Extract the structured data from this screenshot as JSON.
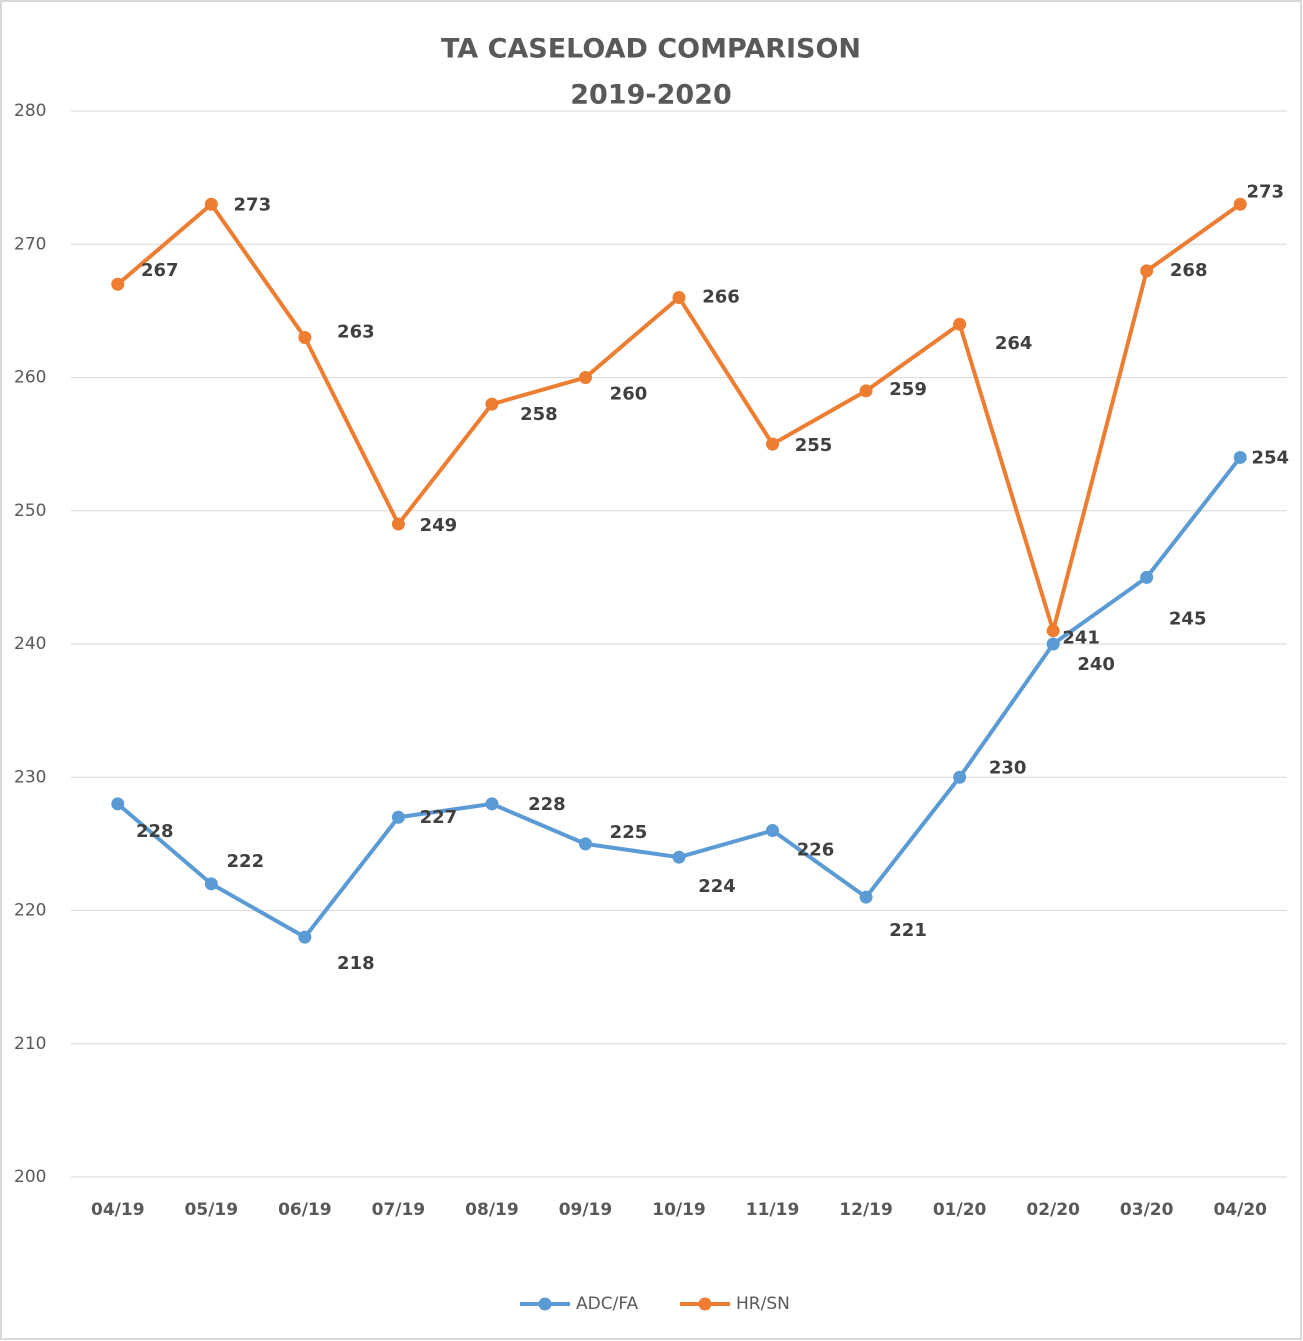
{
  "chart_data": {
    "type": "line",
    "title": "TA CASELOAD COMPARISON",
    "subtitle": "2019-2020",
    "categories": [
      "04/19",
      "05/19",
      "06/19",
      "07/19",
      "08/19",
      "09/19",
      "10/19",
      "11/19",
      "12/19",
      "01/20",
      "02/20",
      "03/20",
      "04/20"
    ],
    "series": [
      {
        "name": "ADC/FA",
        "color": "#5b9bd5",
        "values": [
          228,
          222,
          218,
          227,
          228,
          225,
          224,
          226,
          221,
          230,
          240,
          245,
          254
        ]
      },
      {
        "name": "HR/SN",
        "color": "#ed7d31",
        "values": [
          267,
          273,
          263,
          249,
          258,
          260,
          266,
          255,
          259,
          264,
          241,
          268,
          273
        ]
      }
    ],
    "ylim": [
      200,
      280
    ],
    "yticks": [
      200,
      210,
      220,
      230,
      240,
      250,
      260,
      270,
      280
    ],
    "grid": true,
    "legend": "bottom"
  }
}
